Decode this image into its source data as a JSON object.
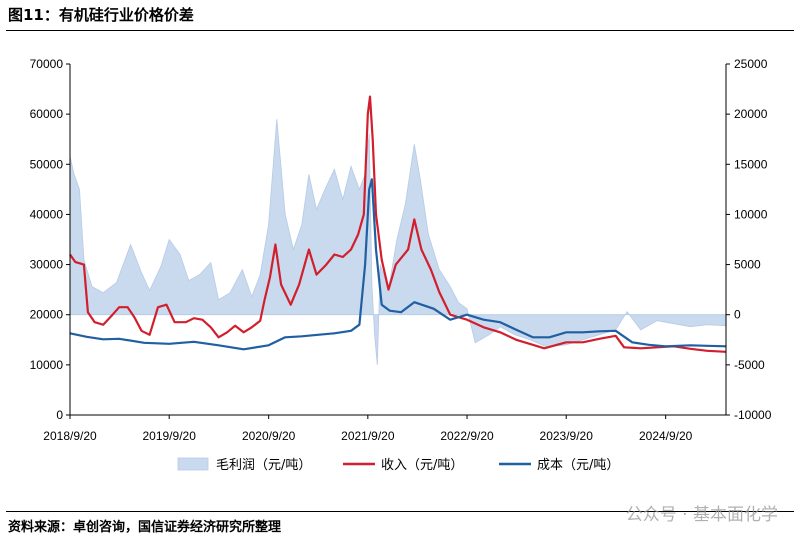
{
  "header": {
    "title": "图11：有机硅行业价格价差"
  },
  "footer": {
    "source": "资料来源：卓创咨询，国信证券经济研究所整理",
    "watermark": "公众号 · 基本面化学"
  },
  "colors": {
    "margin_fill": "#c9d9ee",
    "margin_edge": "#b6cbe6",
    "revenue": "#d11f2d",
    "cost": "#1f5fa2",
    "axis": "#000000"
  },
  "chart_data": {
    "type": "line",
    "title": "",
    "x_tick_labels": [
      "2018/9/20",
      "2019/9/20",
      "2020/9/20",
      "2021/9/20",
      "2022/9/20",
      "2023/9/20",
      "2024/9/20"
    ],
    "x_range": [
      "2018-09-20",
      "2025-04-30"
    ],
    "y_left": {
      "range": [
        0,
        70000
      ],
      "ticks": [
        0,
        10000,
        20000,
        30000,
        40000,
        50000,
        60000,
        70000
      ]
    },
    "y_right": {
      "range": [
        -10000,
        25000
      ],
      "ticks": [
        -10000,
        -5000,
        0,
        5000,
        10000,
        15000,
        20000,
        25000
      ]
    },
    "grid": false,
    "legend_position": "bottom",
    "series": [
      {
        "name": "毛利润（元/吨）",
        "kind": "area",
        "axis": "right",
        "points": [
          [
            "2018-09-20",
            15800
          ],
          [
            "2018-10-05",
            14000
          ],
          [
            "2018-10-25",
            12500
          ],
          [
            "2018-11-10",
            5500
          ],
          [
            "2018-12-10",
            2800
          ],
          [
            "2019-01-20",
            2200
          ],
          [
            "2019-03-10",
            3200
          ],
          [
            "2019-05-01",
            7000
          ],
          [
            "2019-06-10",
            4200
          ],
          [
            "2019-07-10",
            2400
          ],
          [
            "2019-08-20",
            4800
          ],
          [
            "2019-09-20",
            7500
          ],
          [
            "2019-10-30",
            6000
          ],
          [
            "2019-12-01",
            3400
          ],
          [
            "2020-01-10",
            4000
          ],
          [
            "2020-02-20",
            5200
          ],
          [
            "2020-03-20",
            1500
          ],
          [
            "2020-05-01",
            2200
          ],
          [
            "2020-06-15",
            4500
          ],
          [
            "2020-07-20",
            1800
          ],
          [
            "2020-08-20",
            4000
          ],
          [
            "2020-09-20",
            9000
          ],
          [
            "2020-10-20",
            19500
          ],
          [
            "2020-11-20",
            10000
          ],
          [
            "2020-12-20",
            6500
          ],
          [
            "2021-01-20",
            9000
          ],
          [
            "2021-02-15",
            14000
          ],
          [
            "2021-03-15",
            10500
          ],
          [
            "2021-04-15",
            12500
          ],
          [
            "2021-05-20",
            14500
          ],
          [
            "2021-06-20",
            11500
          ],
          [
            "2021-07-20",
            14800
          ],
          [
            "2021-08-20",
            12500
          ],
          [
            "2021-09-10",
            14000
          ],
          [
            "2021-09-25",
            18000
          ],
          [
            "2021-10-05",
            3000
          ],
          [
            "2021-10-15",
            -2000
          ],
          [
            "2021-10-25",
            -5000
          ],
          [
            "2021-11-05",
            5000
          ],
          [
            "2021-12-05",
            2500
          ],
          [
            "2022-01-05",
            7500
          ],
          [
            "2022-02-05",
            11000
          ],
          [
            "2022-03-10",
            17000
          ],
          [
            "2022-04-01",
            13500
          ],
          [
            "2022-05-01",
            8000
          ],
          [
            "2022-06-10",
            4500
          ],
          [
            "2022-07-20",
            2800
          ],
          [
            "2022-08-20",
            1200
          ],
          [
            "2022-09-20",
            600
          ],
          [
            "2022-10-20",
            -2800
          ],
          [
            "2022-12-10",
            -2000
          ],
          [
            "2023-01-20",
            -1200
          ],
          [
            "2023-03-15",
            -2000
          ],
          [
            "2023-05-10",
            -2500
          ],
          [
            "2023-07-10",
            -3200
          ],
          [
            "2023-09-20",
            -3000
          ],
          [
            "2023-11-20",
            -2500
          ],
          [
            "2024-01-20",
            -2000
          ],
          [
            "2024-03-20",
            -1500
          ],
          [
            "2024-05-01",
            300
          ],
          [
            "2024-06-20",
            -1500
          ],
          [
            "2024-08-20",
            -600
          ],
          [
            "2024-10-20",
            -900
          ],
          [
            "2024-12-20",
            -1200
          ],
          [
            "2025-02-20",
            -1000
          ],
          [
            "2025-04-30",
            -1100
          ]
        ]
      },
      {
        "name": "收入（元/吨）",
        "kind": "line",
        "axis": "left",
        "points": [
          [
            "2018-09-20",
            32000
          ],
          [
            "2018-10-10",
            30500
          ],
          [
            "2018-11-10",
            30000
          ],
          [
            "2018-11-25",
            20500
          ],
          [
            "2018-12-20",
            18500
          ],
          [
            "2019-01-20",
            18000
          ],
          [
            "2019-02-20",
            19800
          ],
          [
            "2019-03-20",
            21500
          ],
          [
            "2019-04-20",
            21500
          ],
          [
            "2019-05-15",
            19500
          ],
          [
            "2019-06-10",
            16800
          ],
          [
            "2019-07-10",
            16000
          ],
          [
            "2019-08-10",
            21500
          ],
          [
            "2019-09-10",
            22000
          ],
          [
            "2019-10-10",
            18500
          ],
          [
            "2019-11-20",
            18500
          ],
          [
            "2019-12-20",
            19300
          ],
          [
            "2020-01-20",
            19000
          ],
          [
            "2020-02-20",
            17500
          ],
          [
            "2020-03-20",
            15500
          ],
          [
            "2020-04-20",
            16500
          ],
          [
            "2020-05-20",
            17800
          ],
          [
            "2020-06-20",
            16500
          ],
          [
            "2020-07-20",
            17500
          ],
          [
            "2020-08-20",
            18800
          ],
          [
            "2020-09-05",
            23000
          ],
          [
            "2020-09-25",
            27500
          ],
          [
            "2020-10-15",
            34000
          ],
          [
            "2020-11-05",
            26000
          ],
          [
            "2020-12-10",
            22000
          ],
          [
            "2021-01-10",
            26000
          ],
          [
            "2021-02-15",
            33000
          ],
          [
            "2021-03-15",
            28000
          ],
          [
            "2021-04-20",
            30000
          ],
          [
            "2021-05-20",
            32000
          ],
          [
            "2021-06-20",
            31500
          ],
          [
            "2021-07-20",
            33000
          ],
          [
            "2021-08-15",
            36000
          ],
          [
            "2021-09-05",
            40000
          ],
          [
            "2021-09-20",
            60000
          ],
          [
            "2021-09-28",
            63500
          ],
          [
            "2021-10-08",
            55000
          ],
          [
            "2021-10-20",
            40000
          ],
          [
            "2021-11-10",
            31000
          ],
          [
            "2021-12-05",
            25000
          ],
          [
            "2022-01-01",
            30000
          ],
          [
            "2022-02-15",
            33000
          ],
          [
            "2022-03-10",
            39000
          ],
          [
            "2022-04-05",
            33000
          ],
          [
            "2022-05-10",
            29000
          ],
          [
            "2022-06-10",
            24500
          ],
          [
            "2022-07-20",
            20000
          ],
          [
            "2022-08-20",
            19500
          ],
          [
            "2022-09-20",
            19000
          ],
          [
            "2022-11-20",
            17500
          ],
          [
            "2023-01-20",
            16500
          ],
          [
            "2023-03-20",
            15000
          ],
          [
            "2023-05-20",
            14000
          ],
          [
            "2023-07-01",
            13300
          ],
          [
            "2023-09-20",
            14500
          ],
          [
            "2023-11-20",
            14500
          ],
          [
            "2024-01-20",
            15200
          ],
          [
            "2024-03-20",
            15800
          ],
          [
            "2024-04-20",
            13500
          ],
          [
            "2024-06-20",
            13300
          ],
          [
            "2024-08-20",
            13500
          ],
          [
            "2024-10-20",
            13700
          ],
          [
            "2024-12-20",
            13200
          ],
          [
            "2025-02-20",
            12800
          ],
          [
            "2025-04-30",
            12600
          ]
        ]
      },
      {
        "name": "成本（元/吨）",
        "kind": "line",
        "axis": "left",
        "points": [
          [
            "2018-09-20",
            16300
          ],
          [
            "2018-11-20",
            15600
          ],
          [
            "2019-01-20",
            15100
          ],
          [
            "2019-03-20",
            15200
          ],
          [
            "2019-06-20",
            14400
          ],
          [
            "2019-09-20",
            14200
          ],
          [
            "2019-12-20",
            14600
          ],
          [
            "2020-03-20",
            13900
          ],
          [
            "2020-06-20",
            13100
          ],
          [
            "2020-09-20",
            13900
          ],
          [
            "2020-11-20",
            15500
          ],
          [
            "2021-01-20",
            15700
          ],
          [
            "2021-03-20",
            16000
          ],
          [
            "2021-05-20",
            16300
          ],
          [
            "2021-07-20",
            16800
          ],
          [
            "2021-08-20",
            18000
          ],
          [
            "2021-09-10",
            30000
          ],
          [
            "2021-09-25",
            45000
          ],
          [
            "2021-10-05",
            47000
          ],
          [
            "2021-10-20",
            33000
          ],
          [
            "2021-11-10",
            22000
          ],
          [
            "2021-12-10",
            20800
          ],
          [
            "2022-01-20",
            20500
          ],
          [
            "2022-03-10",
            22500
          ],
          [
            "2022-05-20",
            21200
          ],
          [
            "2022-07-20",
            19000
          ],
          [
            "2022-09-20",
            20000
          ],
          [
            "2022-11-20",
            19000
          ],
          [
            "2023-01-20",
            18500
          ],
          [
            "2023-03-20",
            17000
          ],
          [
            "2023-05-20",
            15500
          ],
          [
            "2023-07-20",
            15500
          ],
          [
            "2023-09-20",
            16500
          ],
          [
            "2023-11-20",
            16500
          ],
          [
            "2024-01-20",
            16700
          ],
          [
            "2024-03-20",
            16800
          ],
          [
            "2024-05-20",
            14500
          ],
          [
            "2024-07-20",
            14000
          ],
          [
            "2024-09-20",
            13700
          ],
          [
            "2024-12-20",
            13900
          ],
          [
            "2025-02-20",
            13800
          ],
          [
            "2025-04-30",
            13700
          ]
        ]
      }
    ]
  }
}
